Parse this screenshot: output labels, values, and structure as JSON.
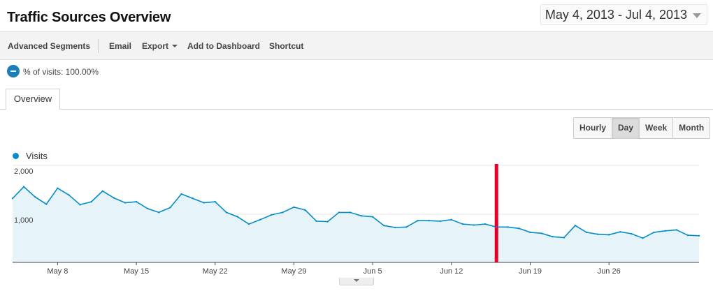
{
  "header": {
    "title": "Traffic Sources Overview",
    "date_range": "May 4, 2013 - Jul 4, 2013"
  },
  "toolbar": {
    "advanced_segments": "Advanced Segments",
    "email": "Email",
    "export": "Export",
    "add_to_dashboard": "Add to Dashboard",
    "shortcut": "Shortcut"
  },
  "segment": {
    "label": "% of visits: 100.00%"
  },
  "tabs": {
    "overview": "Overview"
  },
  "interval": {
    "hourly": "Hourly",
    "day": "Day",
    "week": "Week",
    "month": "Month",
    "selected": "Day"
  },
  "colors": {
    "series": "#058dc7",
    "area": "#e6f4fa",
    "marker": "#e4002b"
  },
  "chart_data": {
    "type": "area",
    "series": [
      {
        "name": "Visits",
        "values": [
          1320,
          1560,
          1350,
          1200,
          1530,
          1390,
          1190,
          1250,
          1470,
          1330,
          1230,
          1250,
          1110,
          1030,
          1130,
          1410,
          1320,
          1230,
          1250,
          1030,
          940,
          790,
          880,
          980,
          1030,
          1140,
          1080,
          850,
          840,
          1030,
          1030,
          960,
          940,
          760,
          720,
          730,
          860,
          860,
          850,
          880,
          790,
          770,
          790,
          730,
          730,
          700,
          620,
          600,
          530,
          510,
          760,
          620,
          580,
          570,
          630,
          590,
          500,
          620,
          650,
          670,
          560,
          550
        ]
      }
    ],
    "x_start_label": "May 4",
    "x_tick_labels": [
      "May 8",
      "May 15",
      "May 22",
      "May 29",
      "Jun 5",
      "Jun 12",
      "Jun 19",
      "Jun 26"
    ],
    "x_tick_indices": [
      4,
      11,
      18,
      25,
      32,
      39,
      46,
      53
    ],
    "y_tick_labels": [
      "2,000",
      "1,000"
    ],
    "y_tick_values": [
      2000,
      1000
    ],
    "ylim": [
      0,
      2000
    ],
    "grid": true,
    "legend": "top-left",
    "marker_line_index": 43
  }
}
